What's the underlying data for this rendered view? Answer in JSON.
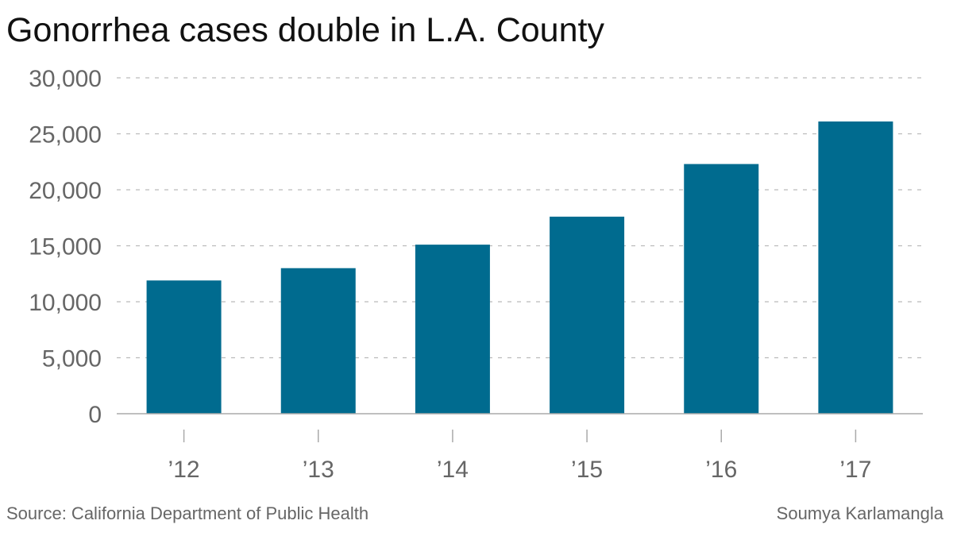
{
  "chart_data": {
    "type": "bar",
    "title": "Gonorrhea cases double in L.A. County",
    "categories": [
      "’12",
      "’13",
      "’14",
      "’15",
      "’16",
      "’17"
    ],
    "values": [
      11900,
      13000,
      15100,
      17600,
      22300,
      26100
    ],
    "ylim": [
      0,
      30000
    ],
    "yticks": [
      0,
      5000,
      10000,
      15000,
      20000,
      25000,
      30000
    ],
    "ytick_labels": [
      "0",
      "5,000",
      "10,000",
      "15,000",
      "20,000",
      "25,000",
      "30,000"
    ],
    "xlabel": "",
    "ylabel": "",
    "grid": "horizontal dashed",
    "bar_color": "#006b8f",
    "grid_color": "#bbbbbb",
    "text_color": "#666666"
  },
  "footer": {
    "source": "Source: California Department of Public Health",
    "credit": "Soumya Karlamangla"
  }
}
